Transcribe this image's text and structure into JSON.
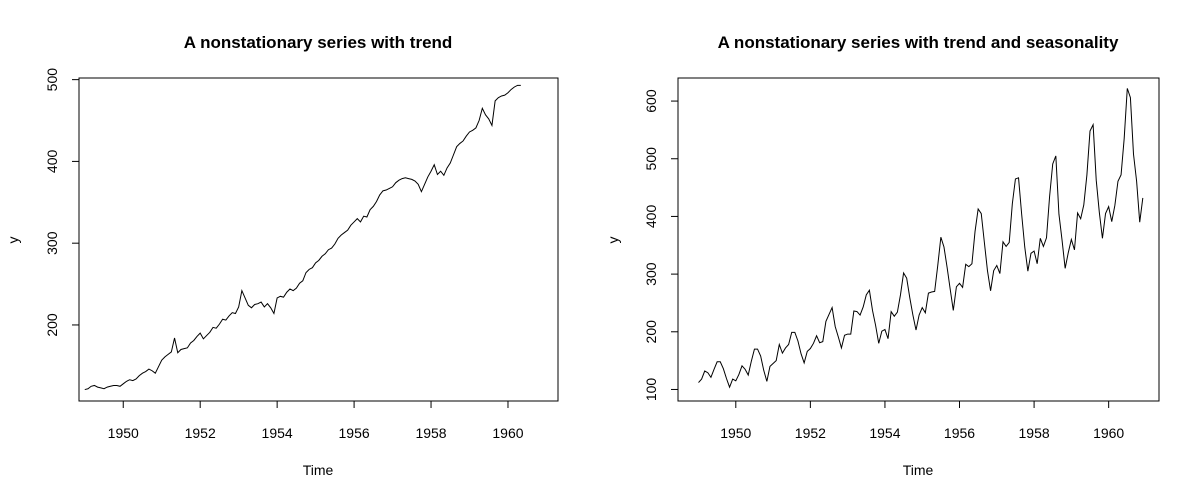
{
  "chart_data": [
    {
      "type": "line",
      "title": "A nonstationary series with trend",
      "xlabel": "Time",
      "ylabel": "y",
      "xlim": [
        1948.85,
        1961.3
      ],
      "ylim": [
        107,
        502
      ],
      "x_ticks": [
        1950,
        1952,
        1954,
        1956,
        1958,
        1960
      ],
      "y_ticks": [
        200,
        300,
        400,
        500
      ],
      "grid": false,
      "line_color": "#000000",
      "series": [
        {
          "start": 1949.0,
          "step": 0.08333,
          "values": [
            121,
            122,
            125,
            126,
            124,
            123,
            122,
            124,
            125,
            126,
            126,
            125,
            128,
            131,
            133,
            132,
            134,
            138,
            141,
            143,
            146,
            144,
            141,
            149,
            157,
            161,
            164,
            167,
            184,
            166,
            170,
            171,
            172,
            178,
            181,
            186,
            190,
            183,
            187,
            191,
            197,
            196,
            201,
            207,
            206,
            211,
            215,
            214,
            222,
            242,
            233,
            224,
            221,
            225,
            226,
            228,
            222,
            226,
            221,
            214,
            233,
            235,
            234,
            240,
            244,
            242,
            245,
            251,
            254,
            264,
            268,
            270,
            276,
            279,
            284,
            287,
            292,
            294,
            299,
            306,
            310,
            313,
            316,
            322,
            326,
            330,
            326,
            333,
            332,
            341,
            345,
            351,
            359,
            364,
            365,
            367,
            369,
            374,
            377,
            379,
            380,
            379,
            378,
            376,
            372,
            363,
            372,
            381,
            388,
            396,
            384,
            388,
            383,
            392,
            398,
            408,
            418,
            422,
            425,
            431,
            436,
            438,
            441,
            450,
            465,
            457,
            452,
            444,
            474,
            478,
            480,
            481,
            484,
            488,
            491,
            493,
            493
          ]
        }
      ]
    },
    {
      "type": "line",
      "title": "A nonstationary series with trend and seasonality",
      "xlabel": "Time",
      "ylabel": "y",
      "xlim": [
        1948.45,
        1961.35
      ],
      "ylim": [
        80,
        640
      ],
      "x_ticks": [
        1950,
        1952,
        1954,
        1956,
        1958,
        1960
      ],
      "y_ticks": [
        100,
        200,
        300,
        400,
        500,
        600
      ],
      "grid": false,
      "line_color": "#000000",
      "series": [
        {
          "start": 1949.0,
          "step": 0.08333,
          "values": [
            112,
            118,
            132,
            129,
            121,
            135,
            148,
            148,
            136,
            119,
            104,
            118,
            115,
            126,
            141,
            135,
            125,
            149,
            170,
            170,
            158,
            133,
            114,
            140,
            145,
            150,
            178,
            163,
            172,
            178,
            199,
            199,
            184,
            162,
            146,
            166,
            171,
            180,
            193,
            181,
            183,
            218,
            230,
            242,
            209,
            191,
            172,
            194,
            196,
            196,
            236,
            235,
            229,
            243,
            264,
            272,
            237,
            211,
            180,
            201,
            204,
            188,
            235,
            227,
            234,
            264,
            302,
            293,
            259,
            229,
            203,
            229,
            242,
            233,
            267,
            269,
            270,
            315,
            364,
            347,
            312,
            274,
            237,
            278,
            284,
            277,
            317,
            313,
            318,
            374,
            413,
            405,
            355,
            306,
            271,
            306,
            315,
            301,
            356,
            348,
            355,
            422,
            465,
            467,
            404,
            347,
            305,
            336,
            340,
            318,
            362,
            348,
            363,
            435,
            491,
            505,
            404,
            359,
            310,
            337,
            360,
            342,
            406,
            396,
            420,
            472,
            548,
            559,
            463,
            407,
            362,
            405,
            417,
            391,
            419,
            461,
            472,
            535,
            622,
            606,
            508,
            461,
            390,
            432
          ]
        }
      ]
    }
  ]
}
